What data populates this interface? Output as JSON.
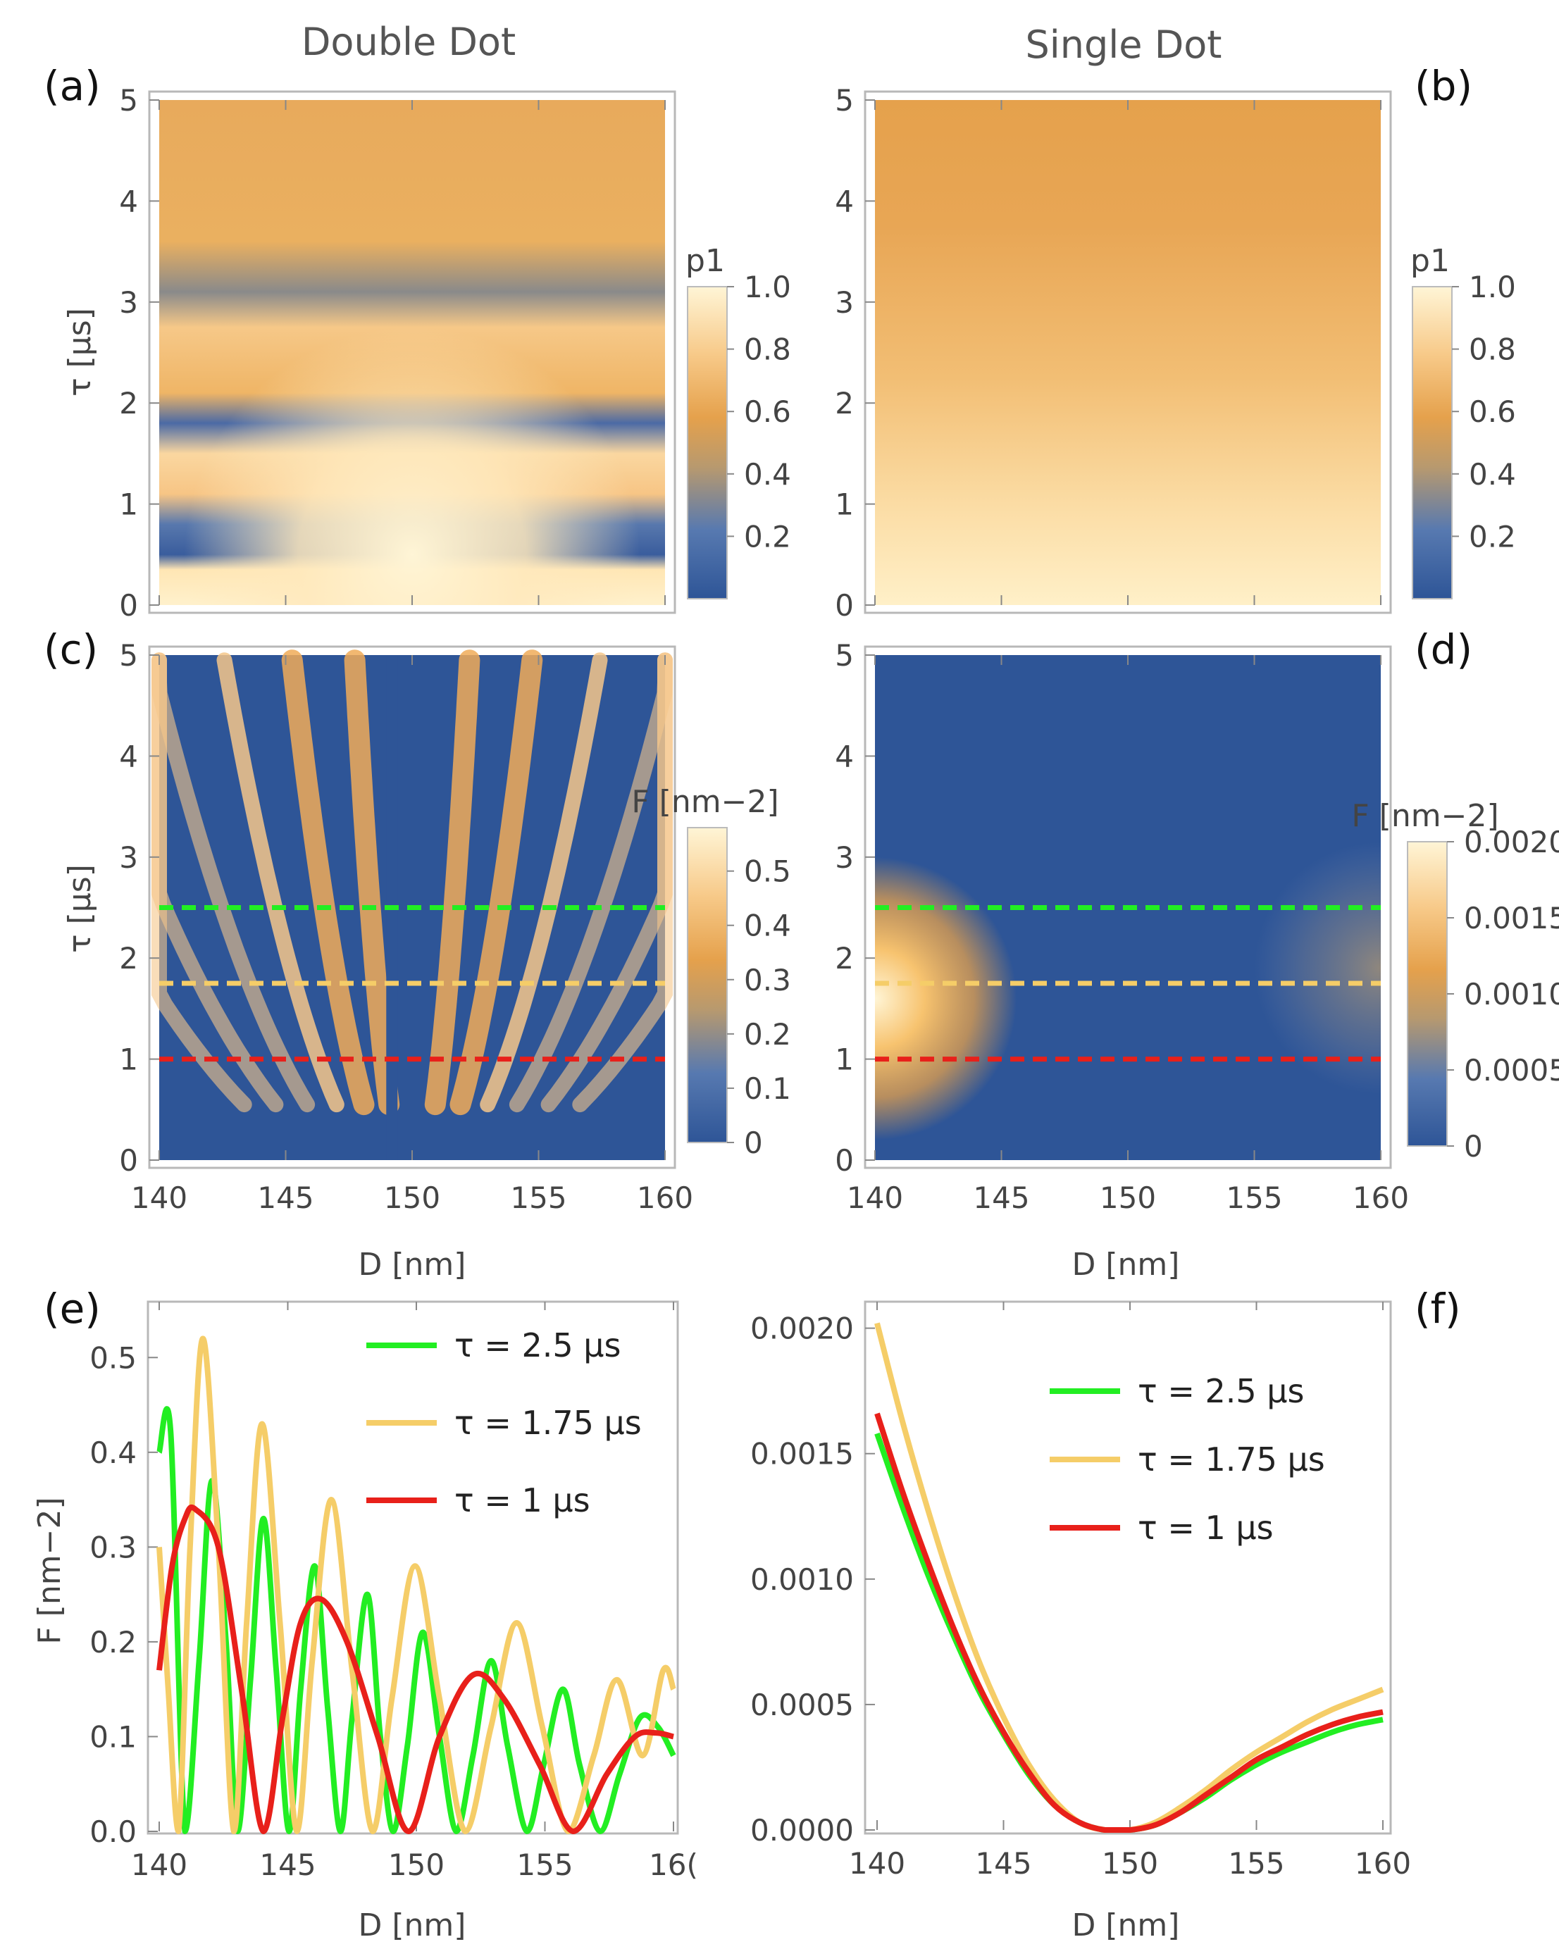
{
  "column_titles": {
    "left": "Double Dot",
    "right": "Single Dot"
  },
  "colors": {
    "map_low": "#2e5597",
    "map_mid": "#e5a14c",
    "map_high": "#fff5d6",
    "line_tau_2_5": "#22ee22",
    "line_tau_1_75": "#f5cd68",
    "line_tau_1": "#e8201a"
  },
  "chart_data": [
    {
      "panel": "(a)",
      "type": "heatmap",
      "column": "Double Dot",
      "quantity": "p1",
      "xlabel": "",
      "ylabel": "τ [μs]",
      "xlim": [
        140,
        160
      ],
      "ylim": [
        0,
        5
      ],
      "xticks": [
        140,
        145,
        150,
        155,
        160
      ],
      "yticks": [
        0,
        1,
        2,
        3,
        4,
        5
      ],
      "colorbar": {
        "title": "p1",
        "range": [
          0,
          1
        ],
        "ticks": [
          "0.2",
          "0.4",
          "0.6",
          "0.8",
          "1.0"
        ]
      }
    },
    {
      "panel": "(b)",
      "type": "heatmap",
      "column": "Single Dot",
      "quantity": "p1",
      "xlabel": "",
      "ylabel": "",
      "xlim": [
        140,
        160
      ],
      "ylim": [
        0,
        5
      ],
      "xticks": [
        140,
        145,
        150,
        155,
        160
      ],
      "yticks": [
        0,
        1,
        2,
        3,
        4,
        5
      ],
      "colorbar": {
        "title": "p1",
        "range": [
          0,
          1
        ],
        "ticks": [
          "0.2",
          "0.4",
          "0.6",
          "0.8",
          "1.0"
        ]
      }
    },
    {
      "panel": "(c)",
      "type": "heatmap",
      "column": "Double Dot",
      "quantity": "F",
      "xlabel": "D [nm]",
      "ylabel": "τ [μs]",
      "xlim": [
        140,
        160
      ],
      "ylim": [
        0,
        5
      ],
      "xticks": [
        140,
        145,
        150,
        155,
        160
      ],
      "yticks": [
        0,
        1,
        2,
        3,
        4,
        5
      ],
      "dashed_lines": [
        {
          "tau": 2.5,
          "color": "#22ee22"
        },
        {
          "tau": 1.75,
          "color": "#f5cd68"
        },
        {
          "tau": 1,
          "color": "#e8201a"
        }
      ],
      "colorbar": {
        "title": "F [nm−2]",
        "range": [
          0,
          0.58
        ],
        "ticks": [
          "0",
          "0.1",
          "0.2",
          "0.3",
          "0.4",
          "0.5"
        ]
      }
    },
    {
      "panel": "(d)",
      "type": "heatmap",
      "column": "Single Dot",
      "quantity": "F",
      "xlabel": "D [nm]",
      "ylabel": "",
      "xlim": [
        140,
        160
      ],
      "ylim": [
        0,
        5
      ],
      "xticks": [
        140,
        145,
        150,
        155,
        160
      ],
      "yticks": [
        0,
        1,
        2,
        3,
        4,
        5
      ],
      "dashed_lines": [
        {
          "tau": 2.5,
          "color": "#22ee22"
        },
        {
          "tau": 1.75,
          "color": "#f5cd68"
        },
        {
          "tau": 1,
          "color": "#e8201a"
        }
      ],
      "colorbar": {
        "title": "F [nm−2]",
        "range": [
          0,
          0.002
        ],
        "ticks": [
          "0",
          "0.0005",
          "0.0010",
          "0.0015",
          "0.0020"
        ]
      }
    },
    {
      "panel": "(e)",
      "type": "line",
      "xlabel": "D [nm]",
      "ylabel": "F [nm−2]",
      "xlim": [
        140,
        160
      ],
      "ylim": [
        0,
        0.55
      ],
      "xticks": [
        "140",
        "145",
        "150",
        "155",
        "16("
      ],
      "yticks": [
        "0.0",
        "0.1",
        "0.2",
        "0.3",
        "0.4",
        "0.5"
      ],
      "legend_position": "top-right",
      "series": [
        {
          "name": "τ = 2.5 μs",
          "color": "#22ee22",
          "x": [
            140,
            140.45,
            141,
            141.55,
            142.05,
            142.6,
            143.05,
            143.55,
            144.05,
            144.55,
            145.05,
            145.5,
            146.05,
            146.55,
            147.05,
            147.5,
            148.1,
            148.6,
            149.1,
            149.65,
            150.25,
            150.9,
            151.55,
            152.2,
            152.9,
            153.55,
            154.3,
            154.95,
            155.7,
            156.35,
            157.15,
            157.9,
            158.7,
            159.4,
            160
          ],
          "y": [
            0.4,
            0.42,
            0.0,
            0.18,
            0.37,
            0.2,
            0.0,
            0.16,
            0.33,
            0.17,
            0.0,
            0.15,
            0.28,
            0.13,
            0.0,
            0.12,
            0.25,
            0.1,
            0.0,
            0.09,
            0.21,
            0.1,
            0.0,
            0.08,
            0.18,
            0.09,
            0.0,
            0.07,
            0.15,
            0.07,
            0.0,
            0.06,
            0.12,
            0.11,
            0.08
          ]
        },
        {
          "name": "τ = 1.75 μs",
          "color": "#f5cd68",
          "x": [
            140,
            140.35,
            140.75,
            141.2,
            141.7,
            142.3,
            142.9,
            143.4,
            144.0,
            144.7,
            145.35,
            145.95,
            146.7,
            147.5,
            148.3,
            149.05,
            149.95,
            150.9,
            151.9,
            152.9,
            153.9,
            154.9,
            155.9,
            156.9,
            157.8,
            158.8,
            159.6,
            160
          ],
          "y": [
            0.3,
            0.15,
            0.0,
            0.3,
            0.52,
            0.3,
            0.0,
            0.22,
            0.43,
            0.22,
            0.0,
            0.18,
            0.35,
            0.17,
            0.0,
            0.14,
            0.28,
            0.14,
            0.0,
            0.11,
            0.22,
            0.11,
            0.0,
            0.08,
            0.16,
            0.08,
            0.17,
            0.15
          ]
        },
        {
          "name": "τ = 1 μs",
          "color": "#e8201a",
          "x": [
            140,
            140.5,
            141,
            141.4,
            142.3,
            143.2,
            144.05,
            144.8,
            145.5,
            146.3,
            147.3,
            148.5,
            149.7,
            150.9,
            152.2,
            153.4,
            154.8,
            156.1,
            157.4,
            158.5,
            159.3,
            160
          ],
          "y": [
            0.17,
            0.28,
            0.33,
            0.34,
            0.3,
            0.15,
            0.0,
            0.12,
            0.22,
            0.245,
            0.2,
            0.1,
            0.0,
            0.1,
            0.165,
            0.14,
            0.07,
            0.0,
            0.06,
            0.1,
            0.104,
            0.1
          ]
        }
      ]
    },
    {
      "panel": "(f)",
      "type": "line",
      "xlabel": "D [nm]",
      "ylabel": "",
      "xlim": [
        140,
        160
      ],
      "ylim": [
        0,
        0.0021
      ],
      "xticks": [
        "140",
        "145",
        "150",
        "155",
        "160"
      ],
      "yticks": [
        "0.0000",
        "0.0005",
        "0.0010",
        "0.0015",
        "0.0020"
      ],
      "legend_position": "top-right",
      "series": [
        {
          "name": "τ = 2.5 μs",
          "color": "#22ee22",
          "x": [
            140,
            141,
            142,
            143,
            144,
            145,
            146,
            147,
            148,
            149,
            150,
            151,
            152,
            153,
            154,
            155,
            156,
            157,
            158,
            159,
            160
          ],
          "y": [
            0.00158,
            0.00129,
            0.00102,
            0.00078,
            0.00056,
            0.00038,
            0.00022,
            0.0001,
            3e-05,
            0.0,
            0.0,
            2e-05,
            7e-05,
            0.00013,
            0.0002,
            0.00026,
            0.00031,
            0.00035,
            0.00039,
            0.00042,
            0.00044
          ]
        },
        {
          "name": "τ = 1.75 μs",
          "color": "#f5cd68",
          "x": [
            140,
            141,
            142,
            143,
            144,
            145,
            146,
            147,
            148,
            149,
            150,
            151,
            152,
            153,
            154,
            155,
            156,
            157,
            158,
            159,
            160
          ],
          "y": [
            0.00202,
            0.00163,
            0.00128,
            0.00096,
            0.00068,
            0.00045,
            0.00026,
            0.00012,
            3e-05,
            0.0,
            0.0,
            3e-05,
            9e-05,
            0.00016,
            0.00024,
            0.00031,
            0.00037,
            0.00043,
            0.00048,
            0.00052,
            0.00056
          ]
        },
        {
          "name": "τ = 1 μs",
          "color": "#e8201a",
          "x": [
            140,
            141,
            142,
            143,
            144,
            145,
            146,
            147,
            148,
            149,
            150,
            151,
            152,
            153,
            154,
            155,
            156,
            157,
            158,
            159,
            160
          ],
          "y": [
            0.00166,
            0.00135,
            0.00107,
            0.00081,
            0.00058,
            0.00039,
            0.00023,
            0.0001,
            3e-05,
            0.0,
            0.0,
            2e-05,
            7e-05,
            0.00014,
            0.00021,
            0.00028,
            0.00033,
            0.00038,
            0.00042,
            0.00045,
            0.00047
          ]
        }
      ]
    }
  ]
}
